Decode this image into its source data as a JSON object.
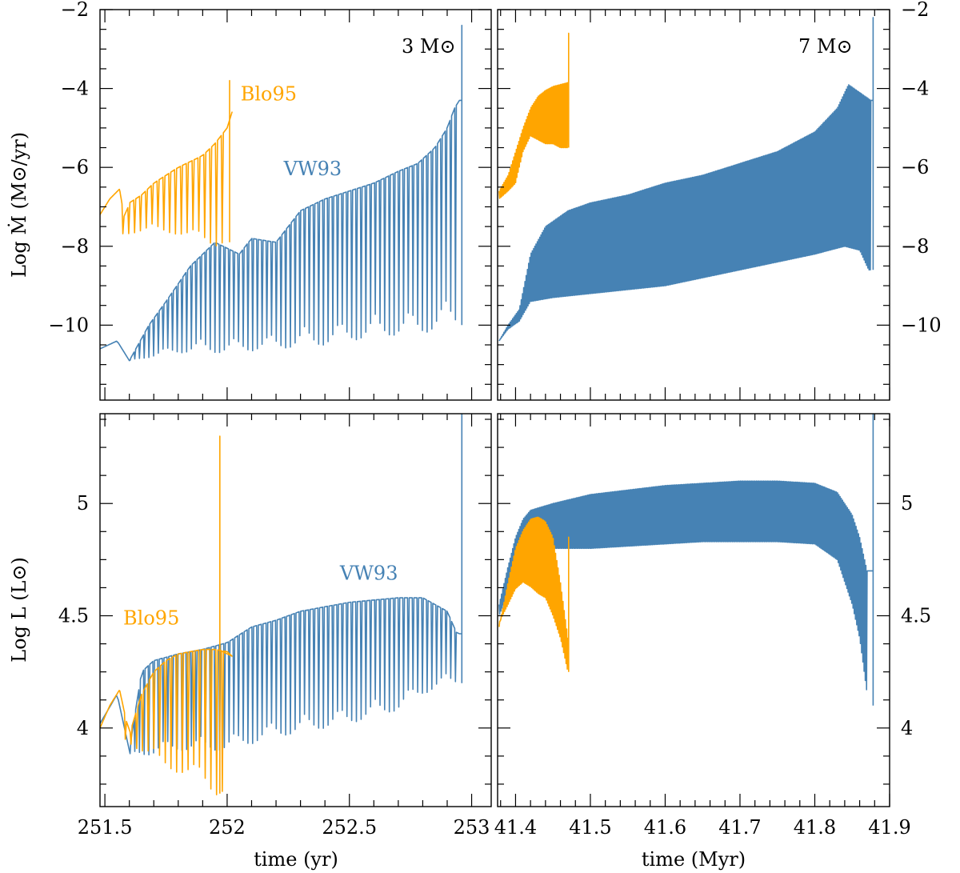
{
  "colors": {
    "vw93": "#4682b4",
    "blo95": "#ffa500",
    "axes": "#000000",
    "background": "#ffffff"
  },
  "chart_data": [
    {
      "type": "line",
      "panel": "top-left",
      "annotation": "3 M⊙",
      "ylabel": "Log Ṁ (M⊙/yr)",
      "xlim": [
        251.48,
        253.08
      ],
      "ylim": [
        -11.9,
        -2
      ],
      "xticks": [
        251.5,
        252,
        252.5,
        253
      ],
      "yticks": [
        -10,
        -8,
        -6,
        -4,
        -2
      ],
      "ytick_labels": [
        "−10",
        "−8",
        "−6",
        "−4",
        "−2"
      ],
      "series": [
        {
          "name": "VW93",
          "label_pos": [
            252.35,
            -6.2
          ],
          "pulses": {
            "t_start": 251.6,
            "t_end": 252.95,
            "count": 70
          },
          "upper": [
            [
              251.48,
              -10.6
            ],
            [
              251.55,
              -10.4
            ],
            [
              251.6,
              -10.9
            ],
            [
              251.68,
              -10.0
            ],
            [
              251.75,
              -9.4
            ],
            [
              251.85,
              -8.5
            ],
            [
              251.95,
              -7.9
            ],
            [
              252.05,
              -8.2
            ],
            [
              252.1,
              -7.8
            ],
            [
              252.2,
              -7.9
            ],
            [
              252.3,
              -7.1
            ],
            [
              252.4,
              -6.8
            ],
            [
              252.5,
              -6.6
            ],
            [
              252.6,
              -6.4
            ],
            [
              252.7,
              -6.1
            ],
            [
              252.78,
              -5.9
            ],
            [
              252.85,
              -5.5
            ],
            [
              252.9,
              -5.0
            ],
            [
              252.93,
              -4.5
            ],
            [
              252.95,
              -4.3
            ]
          ],
          "lower": [
            [
              251.6,
              -10.9
            ],
            [
              251.7,
              -10.8
            ],
            [
              251.8,
              -10.7
            ],
            [
              252.0,
              -10.7
            ],
            [
              252.2,
              -10.6
            ],
            [
              252.4,
              -10.5
            ],
            [
              252.6,
              -10.3
            ],
            [
              252.8,
              -10.2
            ],
            [
              252.95,
              -10.0
            ]
          ],
          "final_spike": [
            252.96,
            -2.4
          ]
        },
        {
          "name": "Blo95",
          "label_pos": [
            252.17,
            -4.3
          ],
          "pulses": {
            "t_start": 251.57,
            "t_end": 252.0,
            "count": 18
          },
          "upper": [
            [
              251.48,
              -7.2
            ],
            [
              251.52,
              -6.8
            ],
            [
              251.56,
              -6.55
            ],
            [
              251.58,
              -7.3
            ],
            [
              251.6,
              -6.9
            ],
            [
              251.65,
              -6.7
            ],
            [
              251.7,
              -6.4
            ],
            [
              251.8,
              -6.0
            ],
            [
              251.9,
              -5.7
            ],
            [
              251.95,
              -5.4
            ],
            [
              252.0,
              -5.0
            ],
            [
              252.02,
              -4.6
            ]
          ],
          "lower": [
            [
              251.57,
              -7.7
            ],
            [
              251.7,
              -7.6
            ],
            [
              251.8,
              -7.7
            ],
            [
              251.95,
              -8.0
            ],
            [
              252.0,
              -7.9
            ]
          ],
          "final_spike": [
            252.01,
            -3.8
          ]
        }
      ]
    },
    {
      "type": "line",
      "panel": "top-right",
      "annotation": "7 M⊙",
      "xlim": [
        41.376,
        41.9
      ],
      "ylim": [
        -11.9,
        -2
      ],
      "xticks": [
        41.4,
        41.5,
        41.6,
        41.7,
        41.8,
        41.9
      ],
      "yticks": [
        -10,
        -8,
        -6,
        -4,
        -2
      ],
      "ytick_labels": [
        "−10",
        "−8",
        "−6",
        "−4",
        "−2"
      ],
      "series": [
        {
          "name": "VW93",
          "upper": [
            [
              41.378,
              -10.4
            ],
            [
              41.39,
              -10.0
            ],
            [
              41.405,
              -9.6
            ],
            [
              41.42,
              -8.2
            ],
            [
              41.44,
              -7.5
            ],
            [
              41.47,
              -7.1
            ],
            [
              41.5,
              -6.9
            ],
            [
              41.55,
              -6.7
            ],
            [
              41.6,
              -6.4
            ],
            [
              41.65,
              -6.2
            ],
            [
              41.7,
              -5.9
            ],
            [
              41.75,
              -5.6
            ],
            [
              41.8,
              -5.1
            ],
            [
              41.83,
              -4.5
            ],
            [
              41.845,
              -3.9
            ],
            [
              41.86,
              -4.1
            ],
            [
              41.875,
              -4.3
            ]
          ],
          "lower": [
            [
              41.378,
              -10.4
            ],
            [
              41.39,
              -10.1
            ],
            [
              41.405,
              -9.9
            ],
            [
              41.42,
              -9.4
            ],
            [
              41.45,
              -9.3
            ],
            [
              41.5,
              -9.2
            ],
            [
              41.55,
              -9.1
            ],
            [
              41.6,
              -9.0
            ],
            [
              41.65,
              -8.8
            ],
            [
              41.7,
              -8.6
            ],
            [
              41.75,
              -8.4
            ],
            [
              41.8,
              -8.2
            ],
            [
              41.84,
              -8.0
            ],
            [
              41.86,
              -8.1
            ],
            [
              41.872,
              -8.6
            ]
          ],
          "final_spike": [
            41.878,
            -2.2
          ]
        },
        {
          "name": "Blo95",
          "upper": [
            [
              41.378,
              -6.6
            ],
            [
              41.39,
              -6.2
            ],
            [
              41.4,
              -5.6
            ],
            [
              41.41,
              -5.0
            ],
            [
              41.42,
              -4.5
            ],
            [
              41.43,
              -4.2
            ],
            [
              41.44,
              -4.05
            ],
            [
              41.45,
              -3.95
            ],
            [
              41.46,
              -3.9
            ],
            [
              41.47,
              -3.85
            ]
          ],
          "lower": [
            [
              41.378,
              -6.8
            ],
            [
              41.39,
              -6.6
            ],
            [
              41.4,
              -6.4
            ],
            [
              41.41,
              -5.6
            ],
            [
              41.42,
              -5.2
            ],
            [
              41.43,
              -5.3
            ],
            [
              41.44,
              -5.4
            ],
            [
              41.45,
              -5.4
            ],
            [
              41.46,
              -5.5
            ],
            [
              41.47,
              -5.5
            ]
          ],
          "final_spike": [
            41.471,
            -2.6
          ]
        }
      ]
    },
    {
      "type": "line",
      "panel": "bottom-left",
      "xlabel": "time (yr)",
      "ylabel": "Log L (L⊙)",
      "xlim": [
        251.48,
        253.08
      ],
      "ylim": [
        3.65,
        5.4
      ],
      "xticks": [
        251.5,
        252,
        252.5,
        253
      ],
      "xtick_labels": [
        "251.5",
        "252",
        "252.5",
        "253"
      ],
      "yticks": [
        4,
        4.5,
        5
      ],
      "ytick_labels": [
        "4",
        "4.5",
        "5"
      ],
      "series": [
        {
          "name": "VW93",
          "label_pos": [
            252.58,
            4.66
          ],
          "pulses": {
            "t_start": 251.6,
            "t_end": 252.95,
            "count": 70
          },
          "upper": [
            [
              251.48,
              4.02
            ],
            [
              251.55,
              4.15
            ],
            [
              251.6,
              3.9
            ],
            [
              251.65,
              4.25
            ],
            [
              251.7,
              4.3
            ],
            [
              251.8,
              4.33
            ],
            [
              251.9,
              4.35
            ],
            [
              252.0,
              4.38
            ],
            [
              252.1,
              4.45
            ],
            [
              252.2,
              4.48
            ],
            [
              252.3,
              4.52
            ],
            [
              252.4,
              4.54
            ],
            [
              252.5,
              4.56
            ],
            [
              252.6,
              4.57
            ],
            [
              252.7,
              4.58
            ],
            [
              252.8,
              4.58
            ],
            [
              252.85,
              4.55
            ],
            [
              252.9,
              4.52
            ],
            [
              252.94,
              4.42
            ]
          ],
          "lower": [
            [
              251.6,
              3.88
            ],
            [
              251.7,
              3.88
            ],
            [
              251.8,
              3.9
            ],
            [
              251.9,
              3.9
            ],
            [
              252.0,
              3.9
            ],
            [
              252.1,
              3.93
            ],
            [
              252.2,
              3.96
            ],
            [
              252.3,
              3.98
            ],
            [
              252.4,
              4.0
            ],
            [
              252.5,
              4.02
            ],
            [
              252.6,
              4.05
            ],
            [
              252.7,
              4.08
            ],
            [
              252.8,
              4.15
            ],
            [
              252.9,
              4.2
            ],
            [
              252.95,
              4.2
            ]
          ],
          "final_spike": [
            252.96,
            5.4
          ]
        },
        {
          "name": "Blo95",
          "label_pos": [
            251.69,
            4.46
          ],
          "pulses": {
            "t_start": 251.58,
            "t_end": 252.0,
            "count": 18
          },
          "upper": [
            [
              251.48,
              4.0
            ],
            [
              251.52,
              4.1
            ],
            [
              251.56,
              4.17
            ],
            [
              251.6,
              3.97
            ],
            [
              251.65,
              4.15
            ],
            [
              251.7,
              4.25
            ],
            [
              251.75,
              4.3
            ],
            [
              251.8,
              4.33
            ],
            [
              251.85,
              4.34
            ],
            [
              251.9,
              4.35
            ],
            [
              251.95,
              4.35
            ],
            [
              252.0,
              4.34
            ],
            [
              252.02,
              4.32
            ]
          ],
          "lower": [
            [
              251.58,
              3.95
            ],
            [
              251.7,
              3.85
            ],
            [
              251.8,
              3.8
            ],
            [
              251.9,
              3.75
            ],
            [
              251.95,
              3.7
            ],
            [
              252.0,
              3.72
            ]
          ],
          "final_spike": [
            251.97,
            5.3
          ]
        }
      ]
    },
    {
      "type": "line",
      "panel": "bottom-right",
      "xlabel": "time (Myr)",
      "xlim": [
        41.376,
        41.9
      ],
      "ylim": [
        3.65,
        5.4
      ],
      "xticks": [
        41.4,
        41.5,
        41.6,
        41.7,
        41.8,
        41.9
      ],
      "xtick_labels": [
        "41.4",
        "41.5",
        "41.6",
        "41.7",
        "41.8",
        "41.9"
      ],
      "yticks": [
        4,
        4.5,
        5
      ],
      "ytick_labels": [
        "4",
        "4.5",
        "5"
      ],
      "series": [
        {
          "name": "VW93",
          "upper": [
            [
              41.378,
              4.55
            ],
            [
              41.39,
              4.72
            ],
            [
              41.4,
              4.85
            ],
            [
              41.41,
              4.93
            ],
            [
              41.42,
              4.97
            ],
            [
              41.45,
              5.0
            ],
            [
              41.5,
              5.04
            ],
            [
              41.55,
              5.06
            ],
            [
              41.6,
              5.08
            ],
            [
              41.65,
              5.09
            ],
            [
              41.7,
              5.1
            ],
            [
              41.75,
              5.1
            ],
            [
              41.8,
              5.09
            ],
            [
              41.83,
              5.05
            ],
            [
              41.85,
              4.95
            ],
            [
              41.86,
              4.85
            ],
            [
              41.87,
              4.7
            ]
          ],
          "lower": [
            [
              41.378,
              4.5
            ],
            [
              41.39,
              4.6
            ],
            [
              41.4,
              4.7
            ],
            [
              41.41,
              4.75
            ],
            [
              41.42,
              4.78
            ],
            [
              41.45,
              4.8
            ],
            [
              41.5,
              4.8
            ],
            [
              41.55,
              4.81
            ],
            [
              41.6,
              4.82
            ],
            [
              41.65,
              4.83
            ],
            [
              41.7,
              4.83
            ],
            [
              41.75,
              4.83
            ],
            [
              41.8,
              4.82
            ],
            [
              41.83,
              4.75
            ],
            [
              41.85,
              4.55
            ],
            [
              41.86,
              4.4
            ],
            [
              41.872,
              4.1
            ]
          ],
          "final_spike": [
            41.878,
            5.4
          ]
        },
        {
          "name": "Blo95",
          "upper": [
            [
              41.378,
              4.45
            ],
            [
              41.39,
              4.65
            ],
            [
              41.4,
              4.8
            ],
            [
              41.41,
              4.88
            ],
            [
              41.42,
              4.93
            ],
            [
              41.43,
              4.94
            ],
            [
              41.44,
              4.92
            ],
            [
              41.45,
              4.85
            ],
            [
              41.46,
              4.65
            ],
            [
              41.47,
              4.4
            ]
          ],
          "lower": [
            [
              41.378,
              4.47
            ],
            [
              41.39,
              4.55
            ],
            [
              41.4,
              4.62
            ],
            [
              41.41,
              4.65
            ],
            [
              41.42,
              4.63
            ],
            [
              41.43,
              4.6
            ],
            [
              41.44,
              4.58
            ],
            [
              41.45,
              4.5
            ],
            [
              41.46,
              4.4
            ],
            [
              41.47,
              4.25
            ]
          ],
          "final_spike": [
            41.471,
            4.85
          ]
        }
      ]
    }
  ]
}
